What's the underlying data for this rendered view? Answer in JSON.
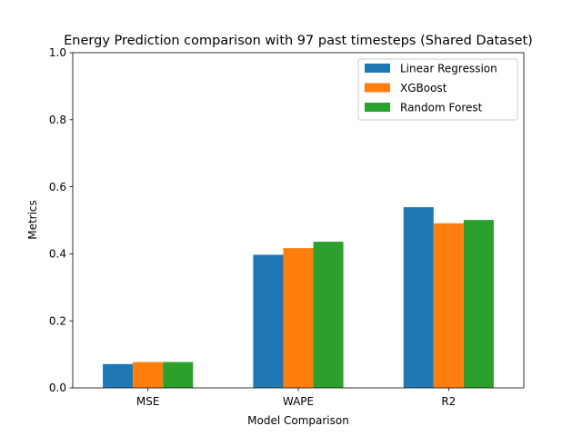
{
  "chart_data": {
    "type": "bar",
    "title": "Energy Prediction comparison with 97 past timesteps (Shared Dataset)",
    "xlabel": "Model Comparison",
    "ylabel": "Metrics",
    "categories": [
      "MSE",
      "WAPE",
      "R2"
    ],
    "ylim": [
      0,
      1.0
    ],
    "yticks": [
      "0.0",
      "0.2",
      "0.4",
      "0.6",
      "0.8",
      "1.0"
    ],
    "grid": false,
    "legend_position": "top-right",
    "series": [
      {
        "name": "Linear Regression",
        "color": "#1f77b4",
        "values": [
          0.071,
          0.397,
          0.539
        ]
      },
      {
        "name": "XGBoost",
        "color": "#ff7f0e",
        "values": [
          0.077,
          0.417,
          0.491
        ]
      },
      {
        "name": "Random Forest",
        "color": "#2ca02c",
        "values": [
          0.077,
          0.436,
          0.501
        ]
      }
    ]
  }
}
